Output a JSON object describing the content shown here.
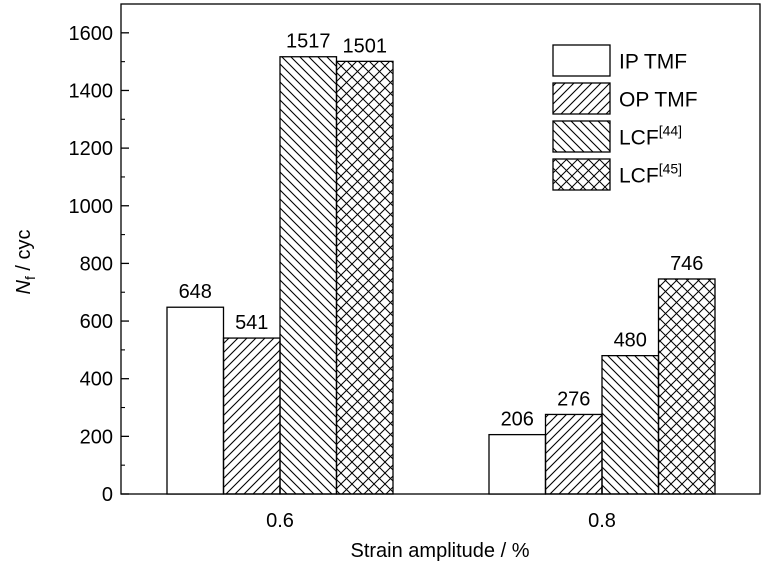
{
  "chart_data": {
    "type": "bar",
    "xlabel": "Strain amplitude / %",
    "ylabel_main": "N",
    "ylabel_sub": "f",
    "ylabel_rest": " / cyc",
    "ylim": [
      0,
      1700
    ],
    "yticks": [
      0,
      200,
      400,
      600,
      800,
      1000,
      1200,
      1400,
      1600
    ],
    "categories": [
      "0.6",
      "0.8"
    ],
    "grid": false,
    "legend_position": "top-right",
    "series": [
      {
        "name": "IP TMF",
        "name_main": "IP TMF",
        "name_sup": "",
        "pattern": "none",
        "values": [
          648,
          206
        ],
        "labels": [
          "648",
          "206"
        ]
      },
      {
        "name": "OP TMF",
        "name_main": "OP TMF",
        "name_sup": "",
        "pattern": "diag-up",
        "values": [
          541,
          276
        ],
        "labels": [
          "541",
          "276"
        ]
      },
      {
        "name": "LCF[44]",
        "name_main": "LCF",
        "name_sup": "[44]",
        "pattern": "diag-down",
        "values": [
          1517,
          480
        ],
        "labels": [
          "1517",
          "480"
        ]
      },
      {
        "name": "LCF[45]",
        "name_main": "LCF",
        "name_sup": "[45]",
        "pattern": "crosshatch",
        "values": [
          1501,
          746
        ],
        "labels": [
          "1501",
          "746"
        ]
      }
    ]
  }
}
